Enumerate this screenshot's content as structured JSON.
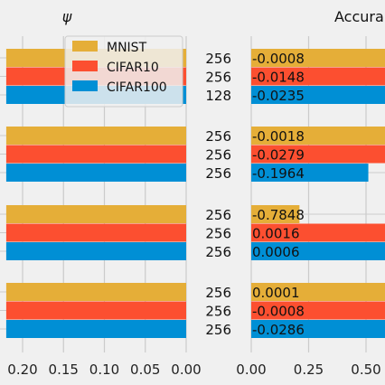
{
  "chart_data": [
    {
      "type": "bar",
      "orientation": "horizontal",
      "title": "ψ",
      "xlabel": "",
      "ylabel": "",
      "xaxis_inverted": true,
      "x_tick_labels": [
        "0.20",
        "0.15",
        "0.10",
        "0.05",
        "0.00"
      ],
      "xlim": [
        0.22,
        0.0
      ],
      "grid": true,
      "legend": {
        "placement": "top-center",
        "entries": [
          {
            "name": "MNIST",
            "color": "#E5AE38"
          },
          {
            "name": "CIFAR10",
            "color": "#FC4F30"
          },
          {
            "name": "CIFAR100",
            "color": "#008FD5"
          }
        ]
      },
      "series": [
        {
          "name": "MNIST",
          "color": "#E5AE38",
          "values": [
            0.22,
            0.22,
            0.22,
            0.22
          ]
        },
        {
          "name": "CIFAR10",
          "color": "#FC4F30",
          "values": [
            0.22,
            0.22,
            0.22,
            0.22
          ]
        },
        {
          "name": "CIFAR100",
          "color": "#008FD5",
          "values": [
            0.22,
            0.22,
            0.22,
            0.22
          ]
        }
      ]
    },
    {
      "type": "table",
      "values_by_group": [
        [
          "256",
          "256",
          "128"
        ],
        [
          "256",
          "256",
          "256"
        ],
        [
          "256",
          "256",
          "256"
        ],
        [
          "256",
          "256",
          "256"
        ]
      ]
    },
    {
      "type": "bar",
      "orientation": "horizontal",
      "title": "Accura",
      "xlabel": "",
      "ylabel": "",
      "x_tick_labels": [
        "0.00",
        "0.25",
        "0.50"
      ],
      "xlim": [
        0.0,
        0.6
      ],
      "grid": true,
      "series": [
        {
          "name": "MNIST",
          "color": "#E5AE38",
          "values": [
            0.6,
            0.6,
            0.21,
            0.6
          ],
          "labels": [
            "-0.0008",
            "-0.0018",
            "-0.7848",
            "0.0001"
          ]
        },
        {
          "name": "CIFAR10",
          "color": "#FC4F30",
          "values": [
            0.6,
            0.6,
            0.6,
            0.6
          ],
          "labels": [
            "-0.0148",
            "-0.0279",
            "0.0016",
            "-0.0008"
          ]
        },
        {
          "name": "CIFAR100",
          "color": "#008FD5",
          "values": [
            0.6,
            0.51,
            0.6,
            0.6
          ],
          "labels": [
            "-0.0235",
            "-0.1964",
            "0.0006",
            "-0.0286"
          ]
        }
      ]
    }
  ]
}
